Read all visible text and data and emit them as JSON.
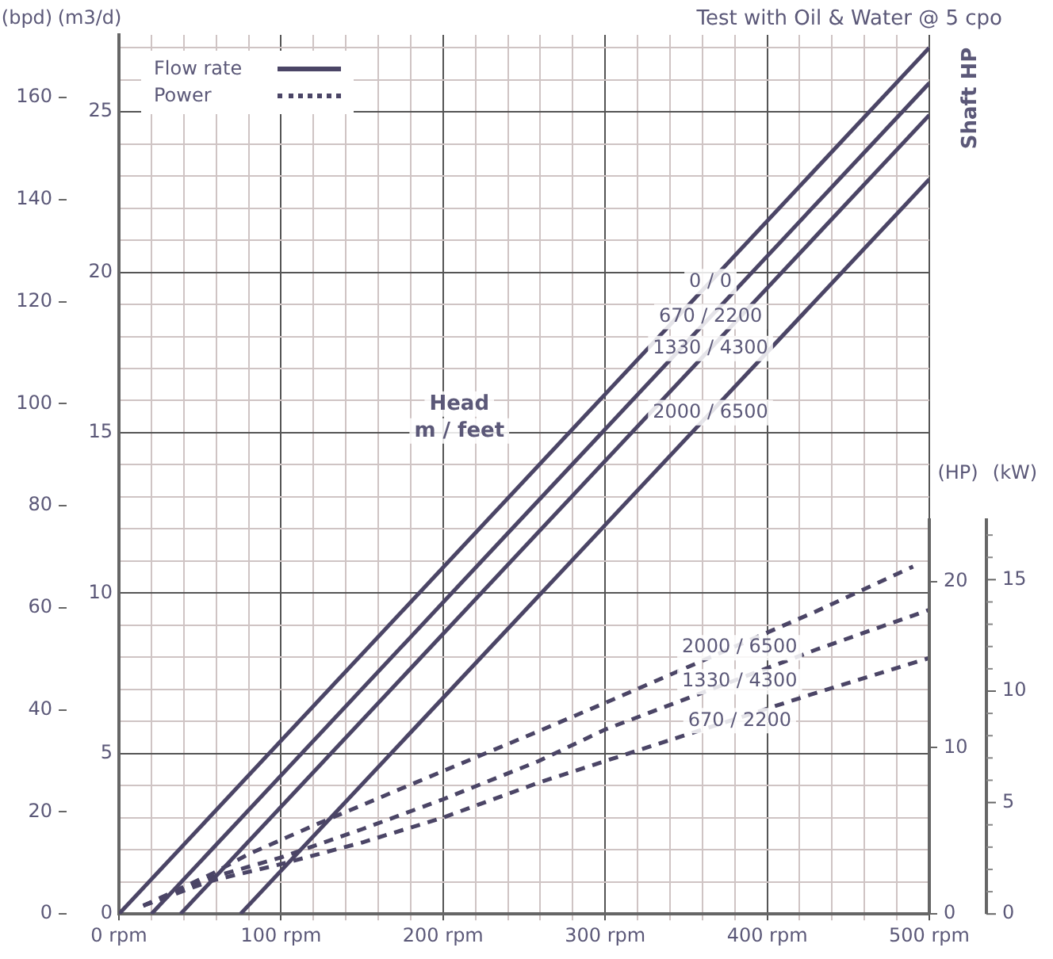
{
  "chart_data": {
    "type": "line",
    "title": "Test with Oil & Water @ 5 cpo",
    "ylabel": "(m3/d)",
    "y2label": "(HP)",
    "y3label": "(bpd)",
    "annotations": [
      "Flow rate",
      "Power",
      "Head",
      "m / feet",
      "Shaft HP",
      "(kW)",
      "0",
      "5",
      "10",
      "15"
    ],
    "xlim": [
      0,
      500
    ],
    "xticks": [
      {
        "value": 0,
        "label": "0 rpm"
      },
      {
        "value": 20,
        "label": null
      },
      {
        "value": 40,
        "label": null
      },
      {
        "value": 60,
        "label": null
      },
      {
        "value": 80,
        "label": null
      },
      {
        "value": 100,
        "label": "100 rpm"
      },
      {
        "value": 120,
        "label": null
      },
      {
        "value": 140,
        "label": null
      },
      {
        "value": 160,
        "label": null
      },
      {
        "value": 180,
        "label": null
      },
      {
        "value": 200,
        "label": "200 rpm"
      },
      {
        "value": 220,
        "label": null
      },
      {
        "value": 240,
        "label": null
      },
      {
        "value": 260,
        "label": null
      },
      {
        "value": 280,
        "label": null
      },
      {
        "value": 300,
        "label": "300 rpm"
      },
      {
        "value": 320,
        "label": null
      },
      {
        "value": 340,
        "label": null
      },
      {
        "value": 360,
        "label": null
      },
      {
        "value": 380,
        "label": null
      },
      {
        "value": 400,
        "label": "400 rpm"
      },
      {
        "value": 420,
        "label": null
      },
      {
        "value": 440,
        "label": null
      },
      {
        "value": 460,
        "label": null
      },
      {
        "value": 480,
        "label": null
      },
      {
        "value": 500,
        "label": "500 rpm"
      }
    ],
    "ylim": [
      0,
      27.4
    ],
    "yticks": [
      0,
      {
        "value": 1,
        "label": null
      },
      {
        "value": 2,
        "label": null
      },
      {
        "value": 3,
        "label": null
      },
      {
        "value": 4,
        "label": null
      },
      5,
      {
        "value": 6,
        "label": null
      },
      {
        "value": 7,
        "label": null
      },
      {
        "value": 8,
        "label": null
      },
      {
        "value": 9,
        "label": null
      },
      10,
      {
        "value": 11,
        "label": null
      },
      {
        "value": 12,
        "label": null
      },
      {
        "value": 13,
        "label": null
      },
      {
        "value": 14,
        "label": null
      },
      15,
      {
        "value": 16,
        "label": null
      },
      {
        "value": 17,
        "label": null
      },
      {
        "value": 18,
        "label": null
      },
      {
        "value": 19,
        "label": null
      },
      20,
      {
        "value": 21,
        "label": null
      },
      {
        "value": 22,
        "label": null
      },
      {
        "value": 23,
        "label": null
      },
      {
        "value": 24,
        "label": null
      },
      25,
      {
        "value": 26,
        "label": null
      },
      {
        "value": 27,
        "label": null
      }
    ],
    "y2lim": [
      0,
      23.8
    ],
    "y2ticks": [
      0,
      10,
      20
    ],
    "y3lim": [
      0,
      172.3
    ],
    "y3ticks": [
      0,
      20,
      40,
      60,
      80,
      100,
      120,
      140,
      160
    ],
    "grid": true,
    "marker": "none",
    "series": [
      {
        "name": "0 / 0",
        "color": "#4b4566",
        "line_style": "solid",
        "x": [
          0,
          500
        ],
        "values": [
          0,
          27.0
        ]
      },
      {
        "name": "670 / 2200",
        "color": "#4b4566",
        "line_style": "solid",
        "x": [
          20,
          500
        ],
        "values": [
          0,
          25.9
        ]
      },
      {
        "name": "1330 / 4300",
        "color": "#4b4566",
        "line_style": "solid",
        "x": [
          38,
          500
        ],
        "values": [
          0,
          24.9
        ]
      },
      {
        "name": "2000 / 6500",
        "color": "#4b4566",
        "line_style": "solid",
        "x": [
          75,
          500
        ],
        "values": [
          0,
          22.9
        ]
      },
      {
        "name": "2000 / 6500",
        "color": "#4b4566",
        "line_style": "dashed",
        "axis": "y2",
        "x": [
          15,
          57,
          80,
          122,
          200,
          259,
          300,
          430,
          490
        ],
        "values": [
          0.5,
          2.4,
          3.6,
          5.4,
          8.6,
          11.0,
          12.7,
          18.2,
          20.9
        ]
      },
      {
        "name": "1330 / 4300",
        "color": "#4b4566",
        "line_style": "dashed",
        "axis": "y2",
        "x": [
          15,
          57,
          100,
          150,
          200,
          259,
          300,
          430,
          500
        ],
        "values": [
          0.5,
          2.2,
          3.4,
          5.1,
          6.9,
          9.2,
          11.1,
          15.9,
          18.3
        ]
      },
      {
        "name": "670 / 2200",
        "color": "#4b4566",
        "line_style": "dashed",
        "axis": "y2",
        "x": [
          15,
          57,
          100,
          150,
          200,
          259,
          300,
          430,
          500
        ],
        "values": [
          0.5,
          2.0,
          3.0,
          4.3,
          5.8,
          7.9,
          9.2,
          13.3,
          15.4
        ]
      }
    ]
  }
}
